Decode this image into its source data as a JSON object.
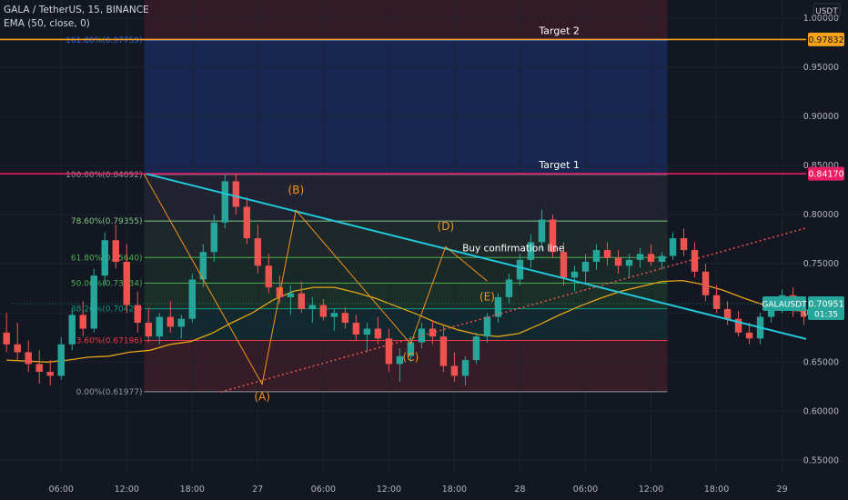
{
  "header": {
    "symbol_line": "GALA / TetherUS, 15, BINANCE",
    "indicator_line": "EMA (50, close, 0)",
    "currency": "USDT"
  },
  "price_tag": {
    "symbol": "GALAUSDT",
    "price": "0.70951",
    "countdown": "01:35"
  },
  "colors": {
    "background": "#131722",
    "bull": "#26a69a",
    "bear": "#ef5350",
    "ema": "#e8a417",
    "target2": "#f7a21b",
    "target1": "#e91e63",
    "trendline": "#21c7d9",
    "dotted": "#ef5350",
    "waves": "#f7931a"
  },
  "chart_data": {
    "type": "candlestick",
    "y_range": [
      0.5355,
      1.0185
    ],
    "y_ticks": [
      "1.00000",
      "0.95000",
      "0.90000",
      "0.85000",
      "0.80000",
      "0.75000",
      "0.70000",
      "0.65000",
      "0.60000",
      "0.55000"
    ],
    "y_tick_values": [
      1.0,
      0.95,
      0.9,
      0.85,
      0.8,
      0.75,
      0.7,
      0.65,
      0.6,
      0.55
    ],
    "x_ticks": [
      "06:00",
      "12:00",
      "18:00",
      "27",
      "06:00",
      "12:00",
      "18:00",
      "28",
      "06:00",
      "12:00",
      "18:00",
      "29"
    ],
    "x_tick_values": [
      6,
      12,
      18,
      24,
      30,
      36,
      42,
      48,
      54,
      60,
      66,
      72
    ],
    "x_range": [
      0.4,
      74.2
    ],
    "target2": {
      "label": "Target 2",
      "value": 0.97832,
      "tag": "0.97832"
    },
    "target1": {
      "label": "Target 1",
      "value": 0.8417,
      "tag": "0.84170"
    },
    "fib": {
      "x_start": 13.6,
      "x_end": 61.5,
      "levels": [
        {
          "label": "161.80%(0.97759)",
          "value": 0.97759,
          "color": "#2962ff"
        },
        {
          "label": "100.00%(0.84092)",
          "value": 0.84092,
          "color": "#9598a1"
        },
        {
          "label": "78.60%(0.79355)",
          "value": 0.79355,
          "color": "#81c784"
        },
        {
          "label": "61.80%(0.75640)",
          "value": 0.7564,
          "color": "#4caf50"
        },
        {
          "label": "50.00%(0.73034)",
          "value": 0.73034,
          "color": "#4caf50"
        },
        {
          "label": "38.20%(0.70425)",
          "value": 0.70425,
          "color": "#089981"
        },
        {
          "label": "23.60%(0.67196)",
          "value": 0.67196,
          "color": "#f23645"
        },
        {
          "label": "0.00%(0.61977)",
          "value": 0.61977,
          "color": "#9598a1"
        }
      ]
    },
    "trendline": {
      "from": [
        13.8,
        0.8415
      ],
      "to": [
        74.2,
        0.6735
      ]
    },
    "support_line": {
      "from": [
        20.6,
        0.6195
      ],
      "to": [
        74.2,
        0.7865
      ]
    },
    "confirmation_label": "Buy confirmation line",
    "waves": [
      {
        "label": "(A)",
        "x": 24.4,
        "y": 0.6275,
        "label_y": 0.611
      },
      {
        "label": "(B)",
        "x": 27.5,
        "y": 0.8045,
        "label_y": 0.8215
      },
      {
        "label": "(C)",
        "x": 38.0,
        "y": 0.6685,
        "label_y": 0.651
      },
      {
        "label": "(D)",
        "x": 41.2,
        "y": 0.7675,
        "label_y": 0.7845
      },
      {
        "label": "(E)",
        "x": 45.0,
        "y": 0.7325,
        "label_y": 0.7125
      }
    ],
    "ema_close": [
      0.652,
      0.651,
      0.65,
      0.652,
      0.655,
      0.656,
      0.66,
      0.662,
      0.668,
      0.671,
      0.679,
      0.69,
      0.7,
      0.713,
      0.722,
      0.726,
      0.726,
      0.721,
      0.715,
      0.707,
      0.699,
      0.69,
      0.683,
      0.678,
      0.676,
      0.679,
      0.688,
      0.698,
      0.707,
      0.715,
      0.722,
      0.727,
      0.732,
      0.733,
      0.729,
      0.723,
      0.715,
      0.708,
      0.703,
      0.702,
      0.702
    ],
    "candles": [
      {
        "o": 0.68,
        "h": 0.7,
        "l": 0.66,
        "c": 0.668
      },
      {
        "o": 0.668,
        "h": 0.69,
        "l": 0.652,
        "c": 0.66
      },
      {
        "o": 0.66,
        "h": 0.672,
        "l": 0.64,
        "c": 0.648
      },
      {
        "o": 0.648,
        "h": 0.662,
        "l": 0.628,
        "c": 0.64
      },
      {
        "o": 0.64,
        "h": 0.652,
        "l": 0.626,
        "c": 0.636
      },
      {
        "o": 0.636,
        "h": 0.675,
        "l": 0.632,
        "c": 0.668
      },
      {
        "o": 0.668,
        "h": 0.705,
        "l": 0.662,
        "c": 0.698
      },
      {
        "o": 0.698,
        "h": 0.712,
        "l": 0.676,
        "c": 0.684
      },
      {
        "o": 0.684,
        "h": 0.745,
        "l": 0.68,
        "c": 0.738
      },
      {
        "o": 0.738,
        "h": 0.782,
        "l": 0.728,
        "c": 0.774
      },
      {
        "o": 0.774,
        "h": 0.79,
        "l": 0.745,
        "c": 0.752
      },
      {
        "o": 0.752,
        "h": 0.77,
        "l": 0.7,
        "c": 0.708
      },
      {
        "o": 0.708,
        "h": 0.722,
        "l": 0.68,
        "c": 0.69
      },
      {
        "o": 0.69,
        "h": 0.705,
        "l": 0.67,
        "c": 0.676
      },
      {
        "o": 0.676,
        "h": 0.7,
        "l": 0.668,
        "c": 0.696
      },
      {
        "o": 0.696,
        "h": 0.712,
        "l": 0.68,
        "c": 0.686
      },
      {
        "o": 0.686,
        "h": 0.698,
        "l": 0.674,
        "c": 0.694
      },
      {
        "o": 0.694,
        "h": 0.74,
        "l": 0.69,
        "c": 0.734
      },
      {
        "o": 0.734,
        "h": 0.77,
        "l": 0.726,
        "c": 0.762
      },
      {
        "o": 0.762,
        "h": 0.8,
        "l": 0.752,
        "c": 0.792
      },
      {
        "o": 0.792,
        "h": 0.842,
        "l": 0.786,
        "c": 0.834
      },
      {
        "o": 0.834,
        "h": 0.842,
        "l": 0.8,
        "c": 0.808
      },
      {
        "o": 0.808,
        "h": 0.818,
        "l": 0.77,
        "c": 0.776
      },
      {
        "o": 0.776,
        "h": 0.79,
        "l": 0.74,
        "c": 0.748
      },
      {
        "o": 0.748,
        "h": 0.76,
        "l": 0.72,
        "c": 0.726
      },
      {
        "o": 0.726,
        "h": 0.738,
        "l": 0.71,
        "c": 0.716
      },
      {
        "o": 0.716,
        "h": 0.728,
        "l": 0.698,
        "c": 0.72
      },
      {
        "o": 0.72,
        "h": 0.732,
        "l": 0.7,
        "c": 0.704
      },
      {
        "o": 0.704,
        "h": 0.716,
        "l": 0.69,
        "c": 0.708
      },
      {
        "o": 0.708,
        "h": 0.714,
        "l": 0.692,
        "c": 0.696
      },
      {
        "o": 0.696,
        "h": 0.704,
        "l": 0.682,
        "c": 0.7
      },
      {
        "o": 0.7,
        "h": 0.706,
        "l": 0.684,
        "c": 0.69
      },
      {
        "o": 0.69,
        "h": 0.698,
        "l": 0.672,
        "c": 0.678
      },
      {
        "o": 0.678,
        "h": 0.69,
        "l": 0.66,
        "c": 0.684
      },
      {
        "o": 0.684,
        "h": 0.696,
        "l": 0.668,
        "c": 0.674
      },
      {
        "o": 0.674,
        "h": 0.684,
        "l": 0.64,
        "c": 0.648
      },
      {
        "o": 0.648,
        "h": 0.664,
        "l": 0.63,
        "c": 0.656
      },
      {
        "o": 0.656,
        "h": 0.676,
        "l": 0.65,
        "c": 0.67
      },
      {
        "o": 0.67,
        "h": 0.69,
        "l": 0.664,
        "c": 0.684
      },
      {
        "o": 0.684,
        "h": 0.692,
        "l": 0.668,
        "c": 0.676
      },
      {
        "o": 0.676,
        "h": 0.688,
        "l": 0.64,
        "c": 0.646
      },
      {
        "o": 0.646,
        "h": 0.66,
        "l": 0.63,
        "c": 0.636
      },
      {
        "o": 0.636,
        "h": 0.656,
        "l": 0.626,
        "c": 0.652
      },
      {
        "o": 0.652,
        "h": 0.68,
        "l": 0.648,
        "c": 0.676
      },
      {
        "o": 0.676,
        "h": 0.7,
        "l": 0.67,
        "c": 0.696
      },
      {
        "o": 0.696,
        "h": 0.72,
        "l": 0.69,
        "c": 0.716
      },
      {
        "o": 0.716,
        "h": 0.74,
        "l": 0.71,
        "c": 0.734
      },
      {
        "o": 0.734,
        "h": 0.76,
        "l": 0.728,
        "c": 0.754
      },
      {
        "o": 0.754,
        "h": 0.78,
        "l": 0.746,
        "c": 0.772
      },
      {
        "o": 0.772,
        "h": 0.805,
        "l": 0.764,
        "c": 0.795
      },
      {
        "o": 0.795,
        "h": 0.8,
        "l": 0.756,
        "c": 0.762
      },
      {
        "o": 0.762,
        "h": 0.772,
        "l": 0.728,
        "c": 0.736
      },
      {
        "o": 0.736,
        "h": 0.748,
        "l": 0.722,
        "c": 0.742
      },
      {
        "o": 0.742,
        "h": 0.76,
        "l": 0.73,
        "c": 0.752
      },
      {
        "o": 0.752,
        "h": 0.77,
        "l": 0.744,
        "c": 0.764
      },
      {
        "o": 0.764,
        "h": 0.772,
        "l": 0.748,
        "c": 0.756
      },
      {
        "o": 0.756,
        "h": 0.764,
        "l": 0.74,
        "c": 0.748
      },
      {
        "o": 0.748,
        "h": 0.76,
        "l": 0.736,
        "c": 0.754
      },
      {
        "o": 0.754,
        "h": 0.766,
        "l": 0.746,
        "c": 0.76
      },
      {
        "o": 0.76,
        "h": 0.77,
        "l": 0.748,
        "c": 0.752
      },
      {
        "o": 0.752,
        "h": 0.762,
        "l": 0.744,
        "c": 0.758
      },
      {
        "o": 0.758,
        "h": 0.782,
        "l": 0.754,
        "c": 0.776
      },
      {
        "o": 0.776,
        "h": 0.786,
        "l": 0.758,
        "c": 0.764
      },
      {
        "o": 0.764,
        "h": 0.772,
        "l": 0.736,
        "c": 0.742
      },
      {
        "o": 0.742,
        "h": 0.75,
        "l": 0.712,
        "c": 0.718
      },
      {
        "o": 0.718,
        "h": 0.728,
        "l": 0.7,
        "c": 0.704
      },
      {
        "o": 0.704,
        "h": 0.712,
        "l": 0.688,
        "c": 0.694
      },
      {
        "o": 0.694,
        "h": 0.702,
        "l": 0.676,
        "c": 0.68
      },
      {
        "o": 0.68,
        "h": 0.69,
        "l": 0.668,
        "c": 0.674
      },
      {
        "o": 0.674,
        "h": 0.7,
        "l": 0.668,
        "c": 0.696
      },
      {
        "o": 0.696,
        "h": 0.716,
        "l": 0.69,
        "c": 0.712
      },
      {
        "o": 0.712,
        "h": 0.724,
        "l": 0.7,
        "c": 0.718
      },
      {
        "o": 0.718,
        "h": 0.726,
        "l": 0.696,
        "c": 0.702
      },
      {
        "o": 0.702,
        "h": 0.712,
        "l": 0.688,
        "c": 0.696
      },
      {
        "o": 0.696,
        "h": 0.71,
        "l": 0.69,
        "c": 0.706
      },
      {
        "o": 0.706,
        "h": 0.714,
        "l": 0.696,
        "c": 0.709
      }
    ]
  }
}
